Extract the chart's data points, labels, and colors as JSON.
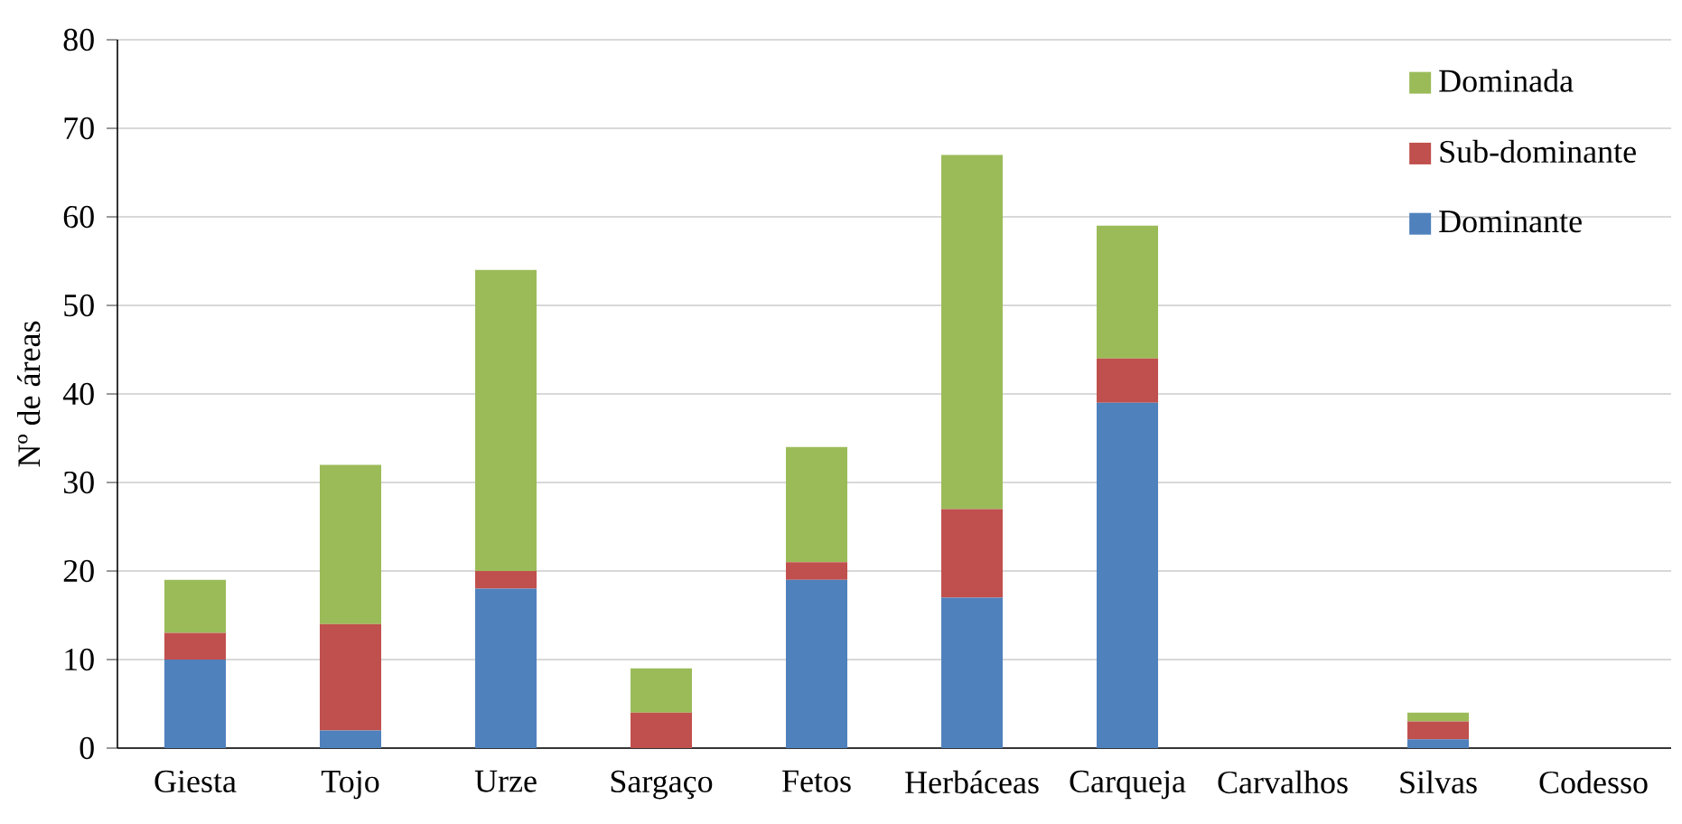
{
  "chart_data": {
    "type": "bar",
    "stacked": true,
    "ylabel": "Nº de áreas",
    "categories": [
      "Giesta",
      "Tojo",
      "Urze",
      "Sargaço",
      "Fetos",
      "Herbáceas",
      "Carqueja",
      "Carvalhos",
      "Silvas",
      "Codesso"
    ],
    "series": [
      {
        "name": "Dominante",
        "color": "#4f81bd",
        "values": [
          10,
          2,
          18,
          0,
          19,
          17,
          39,
          0,
          1,
          0
        ]
      },
      {
        "name": "Sub-dominante",
        "color": "#c0504d",
        "values": [
          3,
          12,
          2,
          4,
          2,
          10,
          5,
          0,
          2,
          0
        ]
      },
      {
        "name": "Dominada",
        "color": "#9bbb59",
        "values": [
          6,
          18,
          34,
          5,
          13,
          40,
          15,
          0,
          1,
          0
        ]
      }
    ],
    "ylim": [
      0,
      80
    ],
    "yticks": [
      0,
      10,
      20,
      30,
      40,
      50,
      60,
      70,
      80
    ],
    "grid": "y",
    "legend": "top right"
  }
}
